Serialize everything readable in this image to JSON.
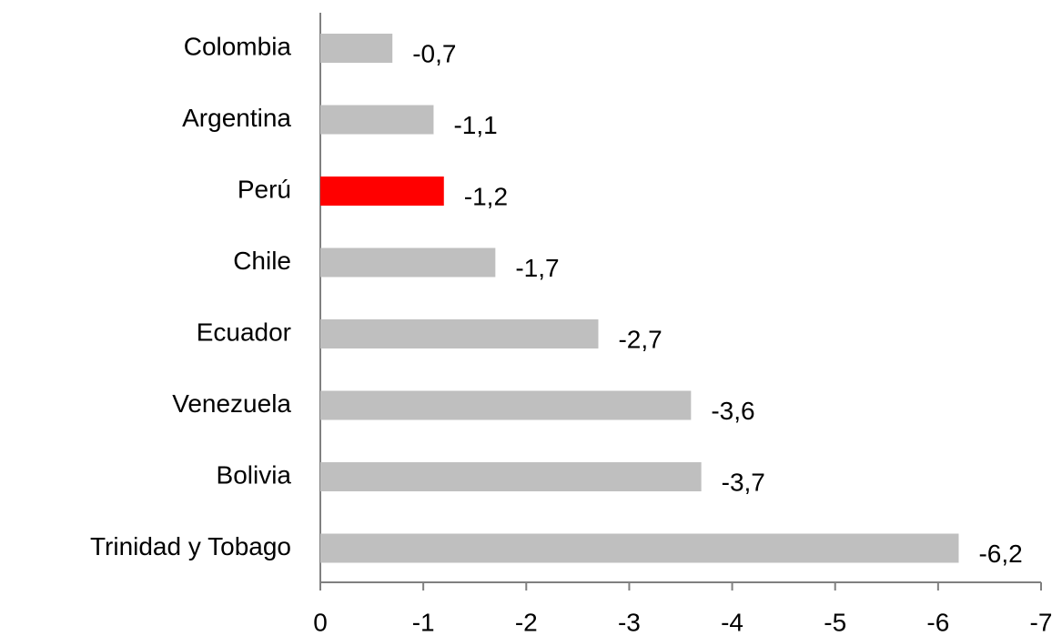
{
  "chart_data": {
    "type": "bar",
    "orientation": "horizontal",
    "categories": [
      "Colombia",
      "Argentina",
      "Perú",
      "Chile",
      "Ecuador",
      "Venezuela",
      "Bolivia",
      "Trinidad y Tobago"
    ],
    "values": [
      -0.7,
      -1.1,
      -1.2,
      -1.7,
      -2.7,
      -3.6,
      -3.7,
      -6.2
    ],
    "value_labels": [
      "-0,7",
      "-1,1",
      "-1,2",
      "-1,7",
      "-2,7",
      "-3,6",
      "-3,7",
      "-6,2"
    ],
    "colors": [
      "#bfbfbf",
      "#bfbfbf",
      "#ff0000",
      "#bfbfbf",
      "#bfbfbf",
      "#bfbfbf",
      "#bfbfbf",
      "#bfbfbf"
    ],
    "xlim": [
      0,
      -7
    ],
    "xticks": [
      0,
      -1,
      -2,
      -3,
      -4,
      -5,
      -6,
      -7
    ],
    "grid": false
  }
}
